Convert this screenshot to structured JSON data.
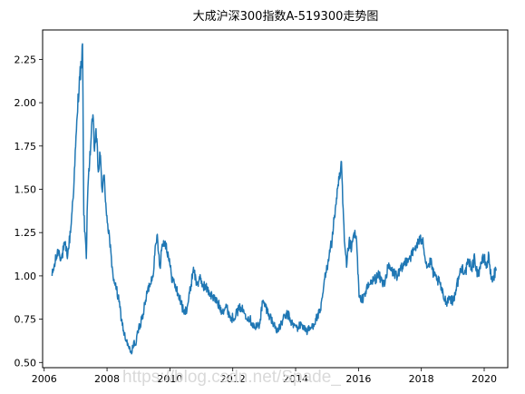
{
  "chart_data": {
    "type": "line",
    "title": "大成沪深300指数A-519300走势图",
    "xlabel": "",
    "ylabel": "",
    "xlim": [
      2005.95,
      2020.75
    ],
    "ylim": [
      0.47,
      2.42
    ],
    "grid": false,
    "color": "#1f77b4",
    "x_ticks": [
      2006,
      2008,
      2010,
      2012,
      2014,
      2016,
      2018,
      2020
    ],
    "x_tick_labels": [
      "2006",
      "2008",
      "2010",
      "2012",
      "2014",
      "2016",
      "2018",
      "2020"
    ],
    "y_ticks": [
      0.5,
      0.75,
      1.0,
      1.25,
      1.5,
      1.75,
      2.0,
      2.25
    ],
    "y_tick_labels": [
      "0.50",
      "0.75",
      "1.00",
      "1.25",
      "1.50",
      "1.75",
      "2.00",
      "2.25"
    ],
    "series": [
      {
        "x": [
          2006.25,
          2006.35,
          2006.45,
          2006.55,
          2006.65,
          2006.75,
          2006.85,
          2006.95,
          2007.05,
          2007.12,
          2007.18,
          2007.22,
          2007.26,
          2007.3,
          2007.34,
          2007.38,
          2007.42,
          2007.48,
          2007.55,
          2007.6,
          2007.65,
          2007.72,
          2007.78,
          2007.84,
          2007.9,
          2007.96,
          2008.02,
          2008.08,
          2008.15,
          2008.22,
          2008.3,
          2008.38,
          2008.46,
          2008.55,
          2008.62,
          2008.7,
          2008.78,
          2008.85,
          2008.92,
          2008.98,
          2009.05,
          2009.15,
          2009.25,
          2009.35,
          2009.45,
          2009.52,
          2009.6,
          2009.68,
          2009.75,
          2009.85,
          2009.95,
          2010.05,
          2010.15,
          2010.25,
          2010.35,
          2010.45,
          2010.55,
          2010.65,
          2010.75,
          2010.85,
          2010.95,
          2011.05,
          2011.2,
          2011.35,
          2011.5,
          2011.65,
          2011.8,
          2011.95,
          2012.1,
          2012.25,
          2012.4,
          2012.55,
          2012.7,
          2012.85,
          2012.95,
          2013.05,
          2013.15,
          2013.3,
          2013.45,
          2013.6,
          2013.75,
          2013.9,
          2014.05,
          2014.2,
          2014.35,
          2014.5,
          2014.65,
          2014.8,
          2014.9,
          2015.0,
          2015.08,
          2015.16,
          2015.24,
          2015.3,
          2015.36,
          2015.42,
          2015.46,
          2015.5,
          2015.55,
          2015.62,
          2015.7,
          2015.78,
          2015.86,
          2015.94,
          2016.02,
          2016.08,
          2016.2,
          2016.35,
          2016.5,
          2016.65,
          2016.8,
          2016.95,
          2017.1,
          2017.25,
          2017.4,
          2017.55,
          2017.7,
          2017.85,
          2017.95,
          2018.05,
          2018.12,
          2018.2,
          2018.3,
          2018.4,
          2018.5,
          2018.6,
          2018.7,
          2018.8,
          2018.9,
          2019.0,
          2019.1,
          2019.2,
          2019.3,
          2019.4,
          2019.5,
          2019.6,
          2019.7,
          2019.8,
          2019.9,
          2020.0,
          2020.08,
          2020.15,
          2020.22,
          2020.3,
          2020.38
        ],
        "values": [
          1.0,
          1.08,
          1.15,
          1.1,
          1.18,
          1.12,
          1.28,
          1.55,
          1.92,
          2.15,
          2.2,
          2.34,
          1.35,
          1.25,
          1.1,
          1.45,
          1.62,
          1.75,
          1.93,
          1.72,
          1.85,
          1.6,
          1.7,
          1.5,
          1.58,
          1.42,
          1.3,
          1.22,
          1.05,
          0.98,
          0.92,
          0.85,
          0.75,
          0.66,
          0.62,
          0.58,
          0.55,
          0.62,
          0.6,
          0.68,
          0.72,
          0.78,
          0.88,
          0.95,
          1.0,
          1.12,
          1.24,
          1.05,
          1.18,
          1.2,
          1.12,
          1.0,
          0.95,
          0.9,
          0.85,
          0.78,
          0.82,
          0.92,
          1.05,
          0.95,
          0.98,
          0.95,
          0.92,
          0.88,
          0.85,
          0.8,
          0.82,
          0.75,
          0.78,
          0.82,
          0.78,
          0.75,
          0.7,
          0.72,
          0.85,
          0.82,
          0.78,
          0.72,
          0.68,
          0.75,
          0.78,
          0.72,
          0.7,
          0.72,
          0.68,
          0.7,
          0.75,
          0.8,
          0.95,
          1.05,
          1.15,
          1.2,
          1.35,
          1.45,
          1.52,
          1.58,
          1.66,
          1.42,
          1.2,
          1.05,
          1.2,
          1.15,
          1.25,
          1.2,
          0.88,
          0.85,
          0.9,
          0.95,
          0.98,
          1.0,
          0.95,
          1.05,
          1.02,
          1.0,
          1.05,
          1.1,
          1.12,
          1.18,
          1.2,
          1.22,
          1.1,
          1.05,
          1.08,
          1.0,
          0.98,
          0.95,
          0.88,
          0.85,
          0.88,
          0.85,
          0.92,
          1.0,
          1.05,
          1.02,
          1.08,
          1.05,
          1.1,
          1.0,
          1.08,
          1.1,
          1.05,
          1.12,
          0.98,
          1.0,
          1.03
        ]
      }
    ]
  },
  "watermark": "https://blog.csdn.net/Spade_"
}
